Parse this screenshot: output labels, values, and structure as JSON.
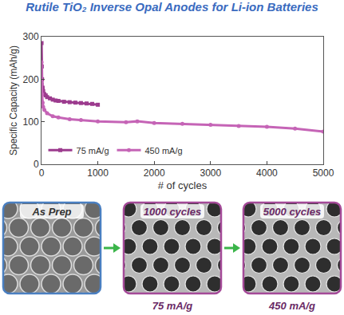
{
  "chart_data": {
    "type": "line",
    "title": "Rutile TiO₂ Inverse Opal Anodes for Li-ion Batteries",
    "x_label": "# of cycles",
    "y_label": "Specific Capacity (mAh/g)",
    "xlim": [
      0,
      5000
    ],
    "xticks": [
      0,
      1000,
      2000,
      3000,
      4000,
      5000
    ],
    "ylim": [
      0,
      300
    ],
    "yticks": [
      0,
      100,
      200,
      300
    ],
    "grid": false,
    "legend": "bottom left",
    "series": [
      {
        "name": "75 mA/g",
        "color": "#9c3b8e",
        "marker": "square",
        "line_style": "solid",
        "x": [
          1,
          5,
          10,
          20,
          30,
          50,
          75,
          100,
          150,
          200,
          250,
          300,
          400,
          500,
          600,
          700,
          800,
          900,
          1000
        ],
        "values": [
          285,
          230,
          200,
          180,
          172,
          165,
          162,
          158,
          155,
          152,
          150,
          149,
          147,
          146,
          145,
          144,
          143,
          142,
          140
        ]
      },
      {
        "name": "450 mA/g",
        "color": "#c564b6",
        "marker": "circle",
        "line_style": "solid",
        "x": [
          1,
          5,
          10,
          20,
          30,
          50,
          100,
          200,
          300,
          500,
          700,
          1000,
          1500,
          1700,
          2000,
          2500,
          3000,
          3500,
          4000,
          4500,
          5000
        ],
        "values": [
          240,
          190,
          165,
          145,
          135,
          128,
          120,
          113,
          110,
          106,
          104,
          101,
          99,
          101,
          97,
          95,
          93,
          90,
          88,
          84,
          77
        ]
      }
    ]
  },
  "images": [
    {
      "label": "As Prep"
    },
    {
      "label": "1000 cycles",
      "caption": "75 mA/g"
    },
    {
      "label": "5000 cycles",
      "caption": "450 mA/g"
    }
  ]
}
